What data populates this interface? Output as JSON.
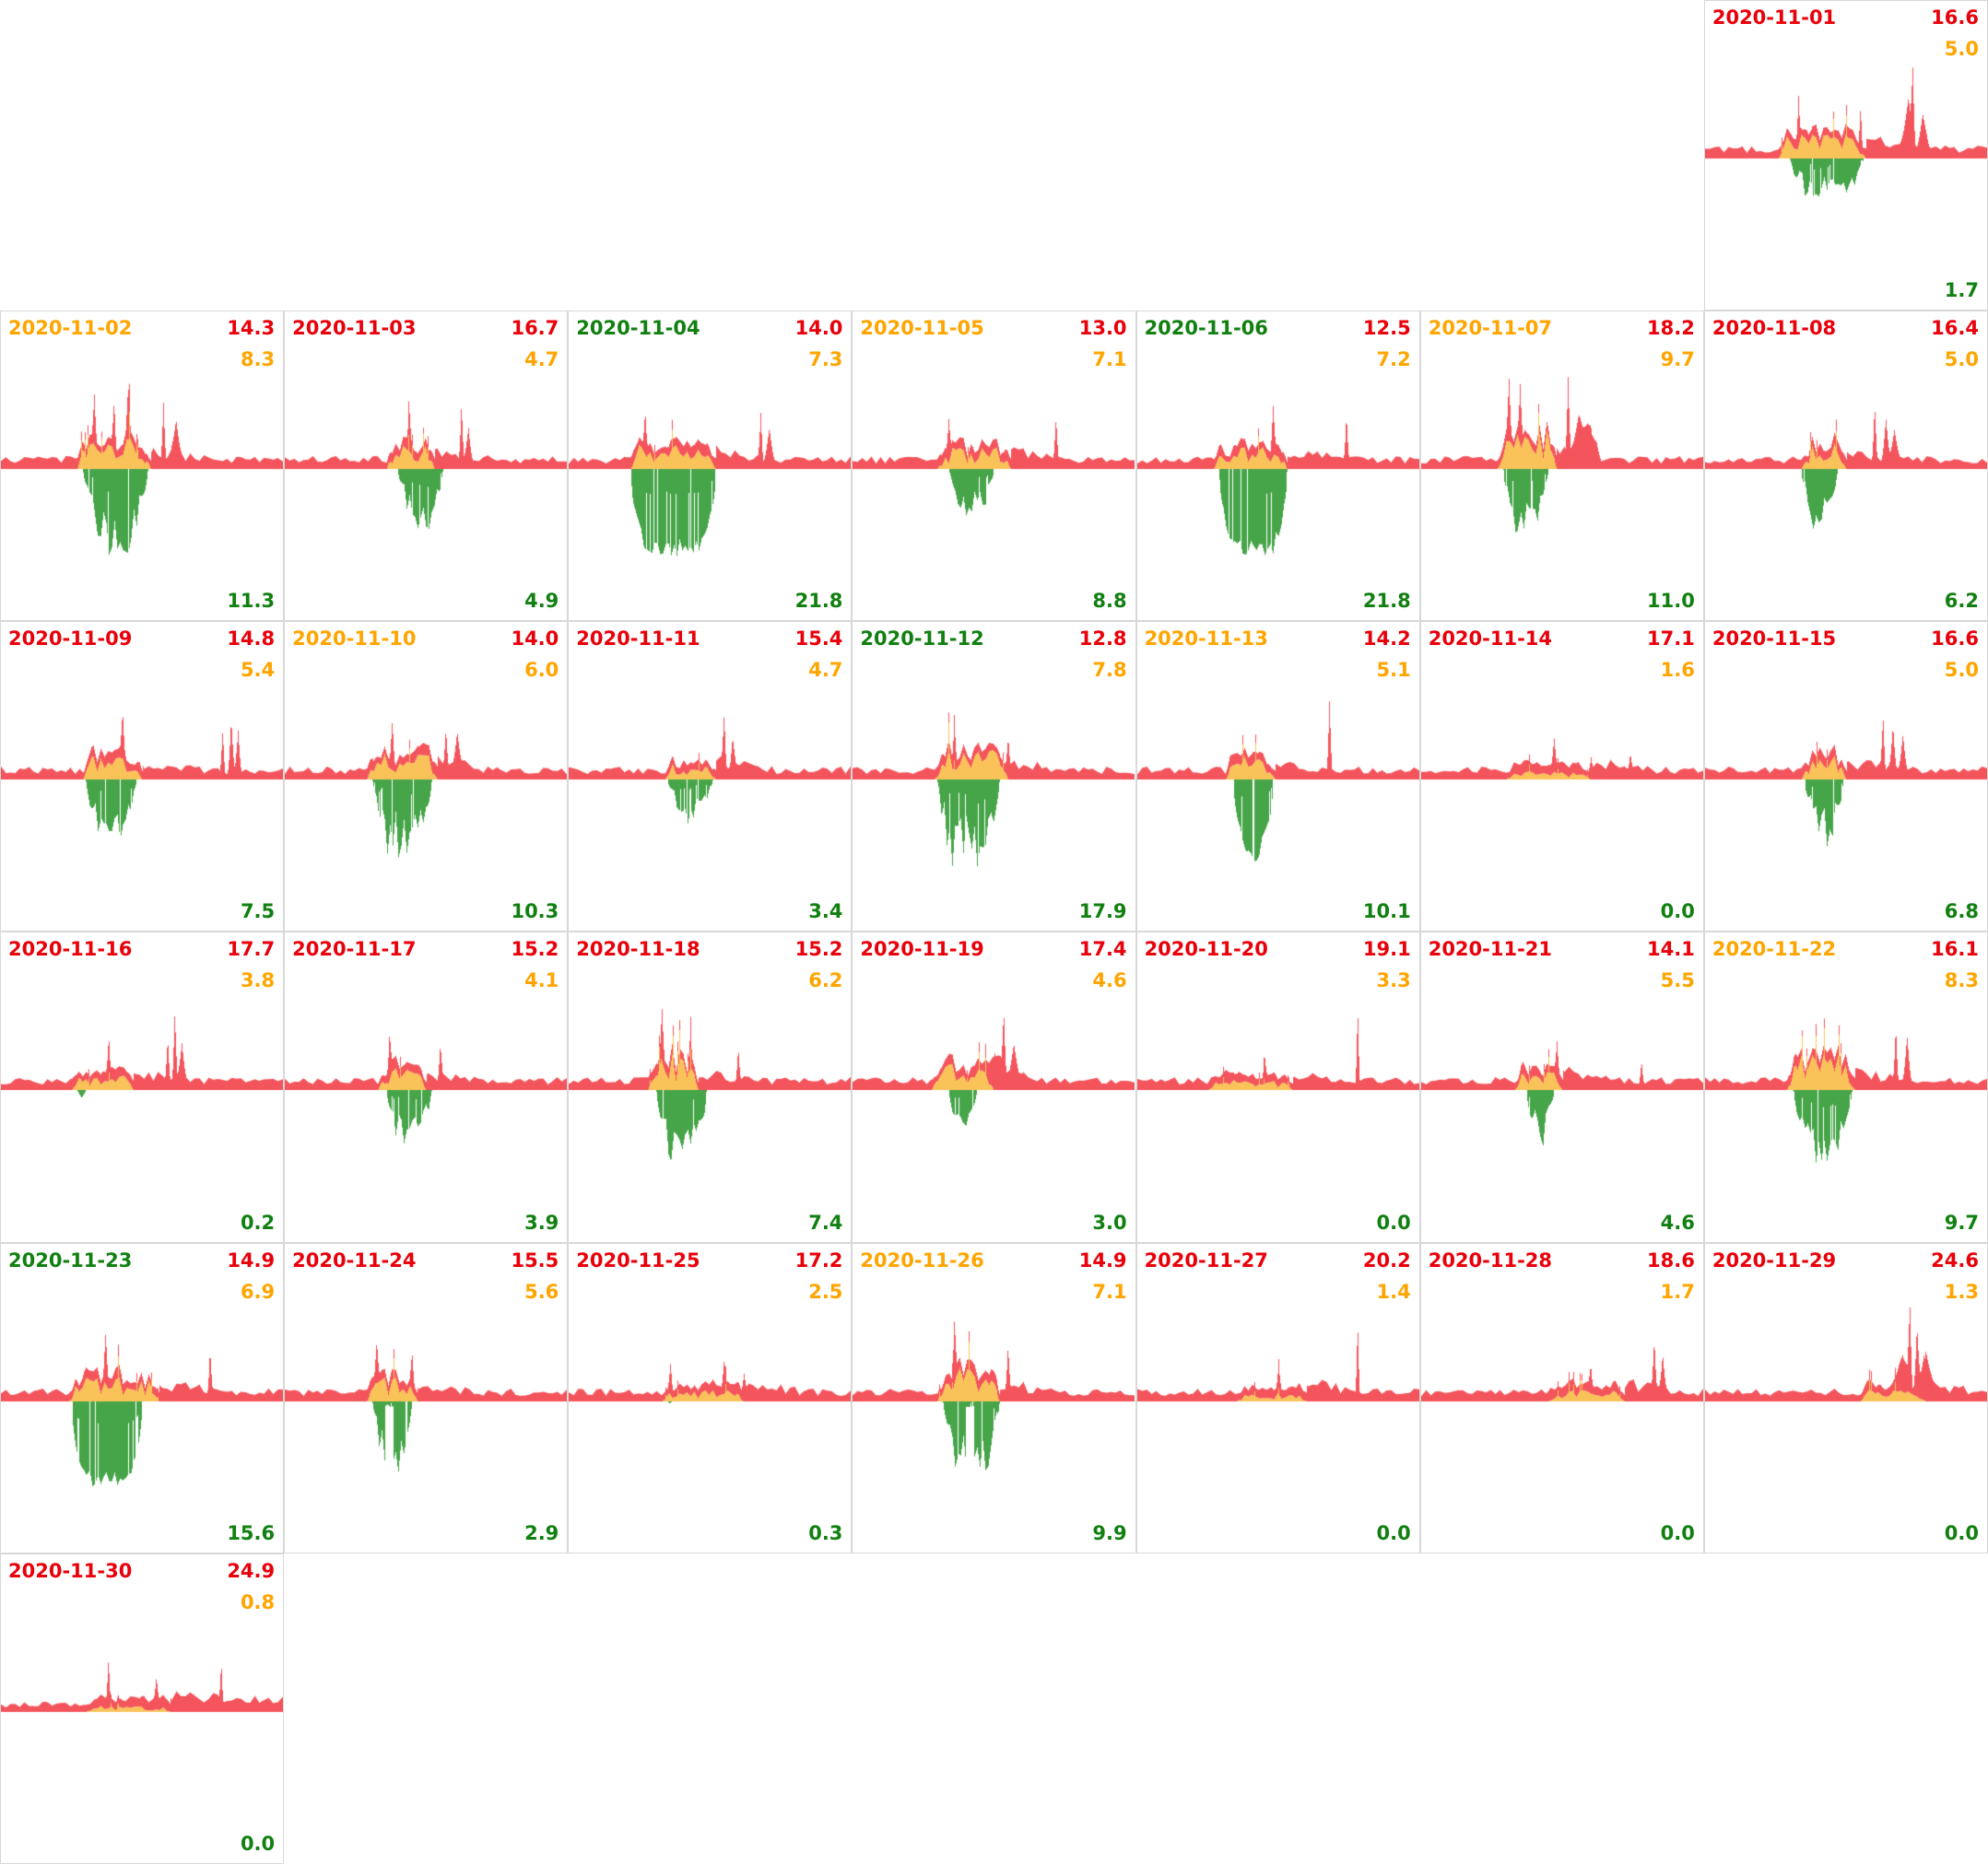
{
  "colors": {
    "chart_red": "#f4545c",
    "chart_orange": "#fac35a",
    "chart_green": "#46a449",
    "text_red": "#e8000a",
    "text_orange": "#ffa500",
    "text_green": "#118011",
    "border": "#d8d8d8",
    "background": "#ffffff"
  },
  "chart_data": {
    "type": "area",
    "layout": {
      "grid_columns": 7,
      "grid_rows": 6,
      "first_day_column": 7,
      "x_axis": "time of day (unlabeled)",
      "positive_area": "red stacked over orange above baseline",
      "negative_area": "green below baseline"
    },
    "days": [
      {
        "date": "2020-11-01",
        "date_color": "red",
        "red": "16.6",
        "orange": "5.0",
        "green": "1.7",
        "p": {
          "seed": 1,
          "o": [
            0.26,
            0.57
          ],
          "oa": 26,
          "g": [
            0.3,
            0.56
          ],
          "gd": 0.45,
          "sp": [
            [
              0.33,
              50,
              2.5
            ],
            [
              0.55,
              65,
              2.5
            ],
            [
              0.72,
              60,
              10
            ],
            [
              0.735,
              90,
              3
            ],
            [
              0.77,
              50,
              8
            ]
          ]
        }
      },
      {
        "date": "2020-11-02",
        "date_color": "orange",
        "red": "14.3",
        "orange": "8.3",
        "green": "11.3",
        "p": {
          "seed": 2,
          "o": [
            0.27,
            0.53
          ],
          "oa": 34,
          "g": [
            0.29,
            0.52
          ],
          "gd": 1.0,
          "sp": [
            [
              0.33,
              55,
              3
            ],
            [
              0.4,
              70,
              3
            ],
            [
              0.45,
              60,
              3
            ],
            [
              0.575,
              85,
              3
            ],
            [
              0.62,
              35,
              6
            ]
          ]
        }
      },
      {
        "date": "2020-11-03",
        "date_color": "red",
        "red": "16.7",
        "orange": "4.7",
        "green": "4.9",
        "p": {
          "seed": 3,
          "o": [
            0.36,
            0.53
          ],
          "oa": 28,
          "g": [
            0.4,
            0.56
          ],
          "gd": 0.75,
          "sp": [
            [
              0.44,
              35,
              3
            ],
            [
              0.625,
              85,
              3
            ],
            [
              0.65,
              50,
              5
            ]
          ]
        }
      },
      {
        "date": "2020-11-04",
        "date_color": "green",
        "red": "14.0",
        "orange": "7.3",
        "green": "21.8",
        "p": {
          "seed": 4,
          "o": [
            0.22,
            0.52
          ],
          "oa": 28,
          "g": [
            0.22,
            0.52
          ],
          "gd": 1.0,
          "gf": 1,
          "sp": [
            [
              0.27,
              50,
              3
            ],
            [
              0.68,
              65,
              3
            ],
            [
              0.71,
              40,
              6
            ]
          ]
        }
      },
      {
        "date": "2020-11-05",
        "date_color": "orange",
        "red": "13.0",
        "orange": "7.1",
        "green": "8.8",
        "p": {
          "seed": 5,
          "o": [
            0.3,
            0.56
          ],
          "oa": 24,
          "g": [
            0.34,
            0.5
          ],
          "gd": 0.62,
          "sp": [
            [
              0.34,
              45,
              3
            ],
            [
              0.72,
              60,
              3
            ]
          ]
        }
      },
      {
        "date": "2020-11-06",
        "date_color": "green",
        "red": "12.5",
        "orange": "7.2",
        "green": "21.8",
        "p": {
          "seed": 6,
          "o": [
            0.27,
            0.53
          ],
          "oa": 26,
          "g": [
            0.29,
            0.53
          ],
          "gd": 1.0,
          "gf": 1,
          "sp": [
            [
              0.48,
              50,
              3
            ],
            [
              0.74,
              55,
              3
            ]
          ]
        }
      },
      {
        "date": "2020-11-07",
        "date_color": "orange",
        "red": "18.2",
        "orange": "9.7",
        "green": "11.0",
        "p": {
          "seed": 7,
          "o": [
            0.27,
            0.48
          ],
          "oa": 42,
          "g": [
            0.29,
            0.45
          ],
          "gd": 0.85,
          "sp": [
            [
              0.31,
              65,
              3
            ],
            [
              0.35,
              75,
              3
            ],
            [
              0.52,
              108,
              3
            ],
            [
              0.56,
              45,
              16
            ],
            [
              0.6,
              38,
              12
            ]
          ]
        }
      },
      {
        "date": "2020-11-08",
        "date_color": "red",
        "red": "16.4",
        "orange": "5.0",
        "green": "6.2",
        "p": {
          "seed": 8,
          "o": [
            0.34,
            0.5
          ],
          "oa": 28,
          "g": [
            0.34,
            0.47
          ],
          "gd": 0.78,
          "sp": [
            [
              0.6,
              72,
              3
            ],
            [
              0.64,
              50,
              5
            ],
            [
              0.67,
              40,
              6
            ]
          ]
        }
      },
      {
        "date": "2020-11-09",
        "date_color": "red",
        "red": "14.8",
        "orange": "5.4",
        "green": "7.5",
        "p": {
          "seed": 9,
          "o": [
            0.29,
            0.5
          ],
          "oa": 26,
          "g": [
            0.3,
            0.48
          ],
          "gd": 0.85,
          "sp": [
            [
              0.43,
              45,
              3
            ],
            [
              0.785,
              70,
              3
            ],
            [
              0.815,
              60,
              4
            ],
            [
              0.84,
              50,
              4
            ]
          ]
        }
      },
      {
        "date": "2020-11-10",
        "date_color": "orange",
        "red": "14.0",
        "orange": "6.0",
        "green": "10.3",
        "p": {
          "seed": 10,
          "o": [
            0.29,
            0.54
          ],
          "oa": 28,
          "g": [
            0.31,
            0.52
          ],
          "gd": 0.9,
          "sp": [
            [
              0.38,
              50,
              3
            ],
            [
              0.57,
              55,
              3
            ],
            [
              0.61,
              35,
              5
            ]
          ]
        }
      },
      {
        "date": "2020-11-11",
        "date_color": "red",
        "red": "15.4",
        "orange": "4.7",
        "green": "3.4",
        "p": {
          "seed": 11,
          "o": [
            0.34,
            0.52
          ],
          "oa": 20,
          "g": [
            0.35,
            0.51
          ],
          "gd": 0.5,
          "sp": [
            [
              0.55,
              68,
              3
            ],
            [
              0.58,
              40,
              4
            ]
          ]
        }
      },
      {
        "date": "2020-11-12",
        "date_color": "green",
        "red": "12.8",
        "orange": "7.8",
        "green": "17.9",
        "p": {
          "seed": 12,
          "o": [
            0.29,
            0.55
          ],
          "oa": 34,
          "g": [
            0.3,
            0.52
          ],
          "gd": 1.0,
          "sp": [
            [
              0.36,
              50,
              3
            ],
            [
              0.55,
              45,
              3
            ]
          ]
        }
      },
      {
        "date": "2020-11-13",
        "date_color": "orange",
        "red": "14.2",
        "orange": "5.1",
        "green": "10.1",
        "p": {
          "seed": 13,
          "o": [
            0.31,
            0.49
          ],
          "oa": 26,
          "g": [
            0.34,
            0.48
          ],
          "gd": 0.95,
          "gf": 1,
          "sp": [
            [
              0.68,
              88,
              3
            ]
          ]
        }
      },
      {
        "date": "2020-11-14",
        "date_color": "red",
        "red": "17.1",
        "orange": "1.6",
        "green": "0.0",
        "p": {
          "seed": 14,
          "o": [
            0.3,
            0.6
          ],
          "oa": 9,
          "g": [
            0,
            0
          ],
          "gd": 0,
          "sp": [
            [
              0.47,
              28,
              3
            ],
            [
              0.6,
              22,
              3
            ],
            [
              0.74,
              22,
              3
            ]
          ]
        }
      },
      {
        "date": "2020-11-15",
        "date_color": "red",
        "red": "16.6",
        "orange": "5.0",
        "green": "6.8",
        "p": {
          "seed": 15,
          "o": [
            0.34,
            0.5
          ],
          "oa": 28,
          "g": [
            0.35,
            0.49
          ],
          "gd": 0.78,
          "sp": [
            [
              0.63,
              68,
              3
            ],
            [
              0.665,
              50,
              4
            ],
            [
              0.7,
              40,
              5
            ]
          ]
        }
      },
      {
        "date": "2020-11-16",
        "date_color": "red",
        "red": "17.7",
        "orange": "3.8",
        "green": "0.2",
        "p": {
          "seed": 16,
          "o": [
            0.25,
            0.47
          ],
          "oa": 16,
          "g": [
            0.27,
            0.3
          ],
          "gd": 0.22,
          "sp": [
            [
              0.38,
              42,
              3
            ],
            [
              0.59,
              65,
              3
            ],
            [
              0.615,
              78,
              3
            ],
            [
              0.64,
              45,
              5
            ]
          ]
        }
      },
      {
        "date": "2020-11-17",
        "date_color": "red",
        "red": "15.2",
        "orange": "4.1",
        "green": "3.9",
        "p": {
          "seed": 17,
          "o": [
            0.33,
            0.5
          ],
          "oa": 24,
          "g": [
            0.36,
            0.52
          ],
          "gd": 0.72,
          "sp": [
            [
              0.37,
              45,
              3
            ],
            [
              0.55,
              42,
              3
            ]
          ]
        }
      },
      {
        "date": "2020-11-18",
        "date_color": "red",
        "red": "15.2",
        "orange": "6.2",
        "green": "7.4",
        "p": {
          "seed": 18,
          "o": [
            0.28,
            0.46
          ],
          "oa": 38,
          "g": [
            0.31,
            0.49
          ],
          "gd": 0.85,
          "sp": [
            [
              0.33,
              50,
              3
            ],
            [
              0.43,
              45,
              3
            ],
            [
              0.6,
              50,
              3
            ]
          ]
        }
      },
      {
        "date": "2020-11-19",
        "date_color": "red",
        "red": "17.4",
        "orange": "4.6",
        "green": "3.0",
        "p": {
          "seed": 19,
          "o": [
            0.28,
            0.5
          ],
          "oa": 28,
          "g": [
            0.34,
            0.44
          ],
          "gd": 0.68,
          "sp": [
            [
              0.5,
              38,
              14
            ],
            [
              0.535,
              72,
              3
            ],
            [
              0.57,
              32,
              10
            ]
          ]
        }
      },
      {
        "date": "2020-11-20",
        "date_color": "red",
        "red": "19.1",
        "orange": "3.3",
        "green": "0.0",
        "p": {
          "seed": 20,
          "o": [
            0.25,
            0.55
          ],
          "oa": 11,
          "g": [
            0,
            0
          ],
          "gd": 0,
          "sp": [
            [
              0.45,
              32,
              3
            ],
            [
              0.78,
              108,
              2.5
            ]
          ]
        }
      },
      {
        "date": "2020-11-21",
        "date_color": "red",
        "red": "14.1",
        "orange": "5.5",
        "green": "4.6",
        "p": {
          "seed": 21,
          "o": [
            0.33,
            0.5
          ],
          "oa": 24,
          "g": [
            0.37,
            0.47
          ],
          "gd": 0.78,
          "sp": [
            [
              0.48,
              42,
              3
            ],
            [
              0.78,
              36,
              3
            ]
          ]
        }
      },
      {
        "date": "2020-11-22",
        "date_color": "orange",
        "red": "16.1",
        "orange": "8.3",
        "green": "9.7",
        "p": {
          "seed": 22,
          "o": [
            0.29,
            0.53
          ],
          "oa": 38,
          "g": [
            0.31,
            0.52
          ],
          "gd": 0.85,
          "sp": [
            [
              0.675,
              72,
              3
            ],
            [
              0.715,
              55,
              5
            ]
          ]
        }
      },
      {
        "date": "2020-11-23",
        "date_color": "green",
        "red": "14.9",
        "orange": "6.9",
        "green": "15.6",
        "p": {
          "seed": 23,
          "o": [
            0.24,
            0.56
          ],
          "oa": 28,
          "g": [
            0.25,
            0.5
          ],
          "gd": 1.0,
          "gf": 1,
          "sp": [
            [
              0.37,
              50,
              3
            ],
            [
              0.74,
              60,
              3
            ]
          ]
        }
      },
      {
        "date": "2020-11-24",
        "date_color": "red",
        "red": "15.5",
        "orange": "5.6",
        "green": "2.9",
        "p": {
          "seed": 24,
          "o": [
            0.29,
            0.47
          ],
          "oa": 28,
          "g": [
            0.31,
            0.45
          ],
          "gd": 0.9,
          "gg": [
            0.355,
            0.385
          ],
          "sp": [
            [
              0.325,
              55,
              3
            ],
            [
              0.45,
              45,
              3
            ]
          ]
        }
      },
      {
        "date": "2020-11-25",
        "date_color": "red",
        "red": "17.2",
        "orange": "2.5",
        "green": "0.3",
        "p": {
          "seed": 25,
          "o": [
            0.33,
            0.62
          ],
          "oa": 13,
          "g": [
            0.35,
            0.365
          ],
          "gd": 0.18,
          "sp": [
            [
              0.36,
              40,
              3
            ],
            [
              0.55,
              36,
              3
            ],
            [
              0.62,
              30,
              3
            ]
          ]
        }
      },
      {
        "date": "2020-11-26",
        "date_color": "orange",
        "red": "14.9",
        "orange": "7.1",
        "green": "9.9",
        "p": {
          "seed": 26,
          "o": [
            0.3,
            0.52
          ],
          "oa": 38,
          "g": [
            0.32,
            0.52
          ],
          "gd": 0.9,
          "gg": [
            0.4,
            0.43
          ],
          "sp": [
            [
              0.36,
              65,
              3
            ],
            [
              0.55,
              60,
              3
            ]
          ]
        }
      },
      {
        "date": "2020-11-27",
        "date_color": "red",
        "red": "20.2",
        "orange": "1.4",
        "green": "0.0",
        "p": {
          "seed": 27,
          "o": [
            0.35,
            0.6
          ],
          "oa": 9,
          "g": [
            0,
            0
          ],
          "gd": 0,
          "sp": [
            [
              0.5,
              26,
              3
            ],
            [
              0.78,
              102,
              2.5
            ]
          ]
        }
      },
      {
        "date": "2020-11-28",
        "date_color": "red",
        "red": "18.6",
        "orange": "1.7",
        "green": "0.0",
        "p": {
          "seed": 28,
          "o": [
            0.45,
            0.72
          ],
          "oa": 12,
          "g": [
            0,
            0
          ],
          "gd": 0,
          "sp": [
            [
              0.6,
              30,
              3
            ],
            [
              0.825,
              55,
              3
            ],
            [
              0.855,
              40,
              4
            ]
          ]
        }
      },
      {
        "date": "2020-11-29",
        "date_color": "red",
        "red": "24.6",
        "orange": "1.3",
        "green": "0.0",
        "p": {
          "seed": 29,
          "o": [
            0.55,
            0.78
          ],
          "oa": 14,
          "g": [
            0,
            0
          ],
          "gd": 0,
          "sp": [
            [
              0.7,
              40,
              12
            ],
            [
              0.725,
              95,
              3
            ],
            [
              0.75,
              80,
              4
            ],
            [
              0.775,
              40,
              10
            ]
          ]
        }
      },
      {
        "date": "2020-11-30",
        "date_color": "red",
        "red": "24.9",
        "orange": "0.8",
        "green": "0.0",
        "p": {
          "seed": 30,
          "o": [
            0.3,
            0.6
          ],
          "oa": 7,
          "g": [
            0,
            0
          ],
          "gd": 0,
          "tr": 1,
          "sp": [
            [
              0.38,
              50,
              2.5
            ],
            [
              0.55,
              26,
              3
            ],
            [
              0.78,
              55,
              2.5
            ]
          ]
        }
      }
    ]
  }
}
